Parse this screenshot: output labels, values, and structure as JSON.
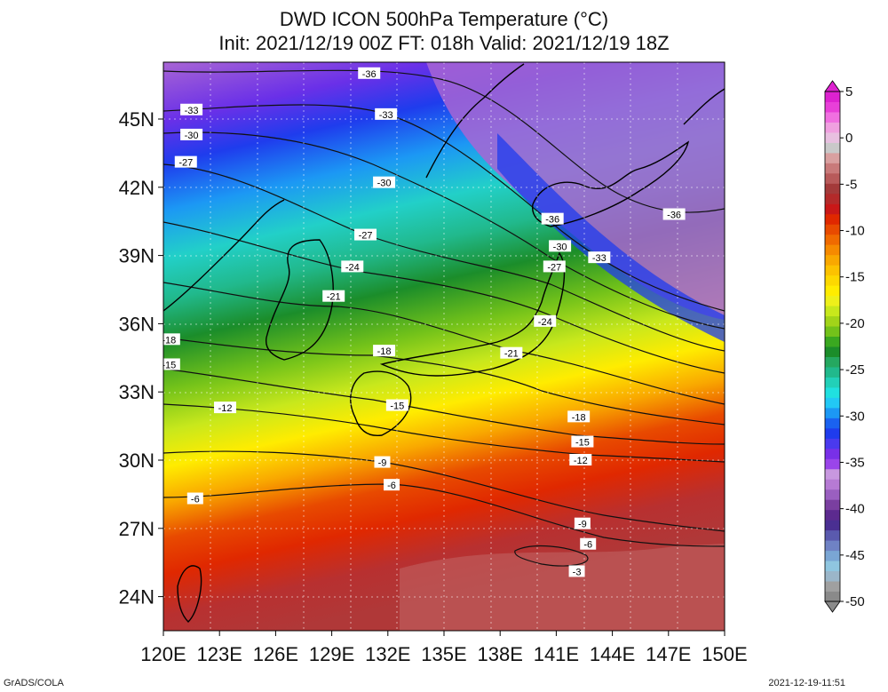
{
  "title": {
    "line1": "DWD ICON 500hPa Temperature (°C)",
    "line2": "Init: 2021/12/19 00Z  FT: 018h  Valid: 2021/12/19 18Z"
  },
  "map": {
    "lon_range": [
      120,
      150
    ],
    "lat_range": [
      22.5,
      47.5
    ],
    "x_ticks": [
      {
        "value": 120,
        "label": "120E"
      },
      {
        "value": 123,
        "label": "123E"
      },
      {
        "value": 126,
        "label": "126E"
      },
      {
        "value": 129,
        "label": "129E"
      },
      {
        "value": 132,
        "label": "132E"
      },
      {
        "value": 135,
        "label": "135E"
      },
      {
        "value": 138,
        "label": "138E"
      },
      {
        "value": 141,
        "label": "141E"
      },
      {
        "value": 144,
        "label": "144E"
      },
      {
        "value": 147,
        "label": "147E"
      },
      {
        "value": 150,
        "label": "150E"
      }
    ],
    "y_ticks": [
      {
        "value": 45,
        "label": "45N"
      },
      {
        "value": 42,
        "label": "42N"
      },
      {
        "value": 39,
        "label": "39N"
      },
      {
        "value": 36,
        "label": "36N"
      },
      {
        "value": 33,
        "label": "33N"
      },
      {
        "value": 30,
        "label": "30N"
      },
      {
        "value": 27,
        "label": "27N"
      },
      {
        "value": 24,
        "label": "24N"
      }
    ],
    "contour_labels": [
      {
        "text": "-36",
        "lon": 131.0,
        "lat": 47.0
      },
      {
        "text": "-33",
        "lon": 121.5,
        "lat": 45.4
      },
      {
        "text": "-33",
        "lon": 131.9,
        "lat": 45.2
      },
      {
        "text": "-30",
        "lon": 121.5,
        "lat": 44.3
      },
      {
        "text": "-27",
        "lon": 121.2,
        "lat": 43.1
      },
      {
        "text": "-30",
        "lon": 131.8,
        "lat": 42.2
      },
      {
        "text": "-36",
        "lon": 140.8,
        "lat": 40.6
      },
      {
        "text": "-36",
        "lon": 147.3,
        "lat": 40.8
      },
      {
        "text": "-27",
        "lon": 130.8,
        "lat": 39.9
      },
      {
        "text": "-30",
        "lon": 141.2,
        "lat": 39.4
      },
      {
        "text": "-33",
        "lon": 143.3,
        "lat": 38.9
      },
      {
        "text": "-24",
        "lon": 130.1,
        "lat": 38.5
      },
      {
        "text": "-27",
        "lon": 140.9,
        "lat": 38.5
      },
      {
        "text": "-21",
        "lon": 129.1,
        "lat": 37.2
      },
      {
        "text": "-24",
        "lon": 140.4,
        "lat": 36.1
      },
      {
        "text": "-18",
        "lon": 131.8,
        "lat": 34.8
      },
      {
        "text": "-21",
        "lon": 138.6,
        "lat": 34.7
      },
      {
        "text": "-18",
        "lon": 120.3,
        "lat": 35.3
      },
      {
        "text": "-15",
        "lon": 120.3,
        "lat": 34.2
      },
      {
        "text": "-15",
        "lon": 132.5,
        "lat": 32.4
      },
      {
        "text": "-12",
        "lon": 123.3,
        "lat": 32.3
      },
      {
        "text": "-18",
        "lon": 142.2,
        "lat": 31.9
      },
      {
        "text": "-15",
        "lon": 142.4,
        "lat": 30.8
      },
      {
        "text": "-12",
        "lon": 142.3,
        "lat": 30.0
      },
      {
        "text": "-9",
        "lon": 131.7,
        "lat": 29.9
      },
      {
        "text": "-6",
        "lon": 132.2,
        "lat": 28.9
      },
      {
        "text": "-6",
        "lon": 121.7,
        "lat": 28.3
      },
      {
        "text": "-9",
        "lon": 142.4,
        "lat": 27.2
      },
      {
        "text": "-6",
        "lon": 142.7,
        "lat": 26.3
      },
      {
        "text": "-3",
        "lon": 142.1,
        "lat": 25.1
      }
    ]
  },
  "colorbar": {
    "min": -50,
    "max": 5,
    "tick_labels": [
      "5",
      "0",
      "-5",
      "-10",
      "-15",
      "-20",
      "-25",
      "-30",
      "-35",
      "-40",
      "-45",
      "-50"
    ],
    "colors": [
      "#8a8a8a",
      "#a0a0a0",
      "#9bb6c9",
      "#8fc6e0",
      "#7aa6d4",
      "#6f82c4",
      "#5a5aae",
      "#4a2f92",
      "#5c2a8f",
      "#7a3fa0",
      "#9a5fc0",
      "#b67ad4",
      "#c898e0",
      "#9a45ea",
      "#7830e8",
      "#4a3aee",
      "#1f3ced",
      "#1a62f0",
      "#1c98f4",
      "#22c8f5",
      "#20e0e0",
      "#22d0b8",
      "#21b98c",
      "#25a860",
      "#1b8d2a",
      "#3aa820",
      "#73c21a",
      "#a2d419",
      "#c8e81c",
      "#eef01a",
      "#ffec00",
      "#fdd800",
      "#fcc200",
      "#f9a800",
      "#f68a00",
      "#f06a00",
      "#e84a00",
      "#e02800",
      "#c91818",
      "#b32a2a",
      "#a33a3a",
      "#b85a5a",
      "#c97a7a",
      "#d9a0a0",
      "#c9c9c9",
      "#e8c0e0",
      "#f0a0e0",
      "#f070e0",
      "#e840d8",
      "#dd22d0"
    ]
  },
  "footer": {
    "left": "GrADS/COLA",
    "right": "2021-12-19-11:51"
  }
}
